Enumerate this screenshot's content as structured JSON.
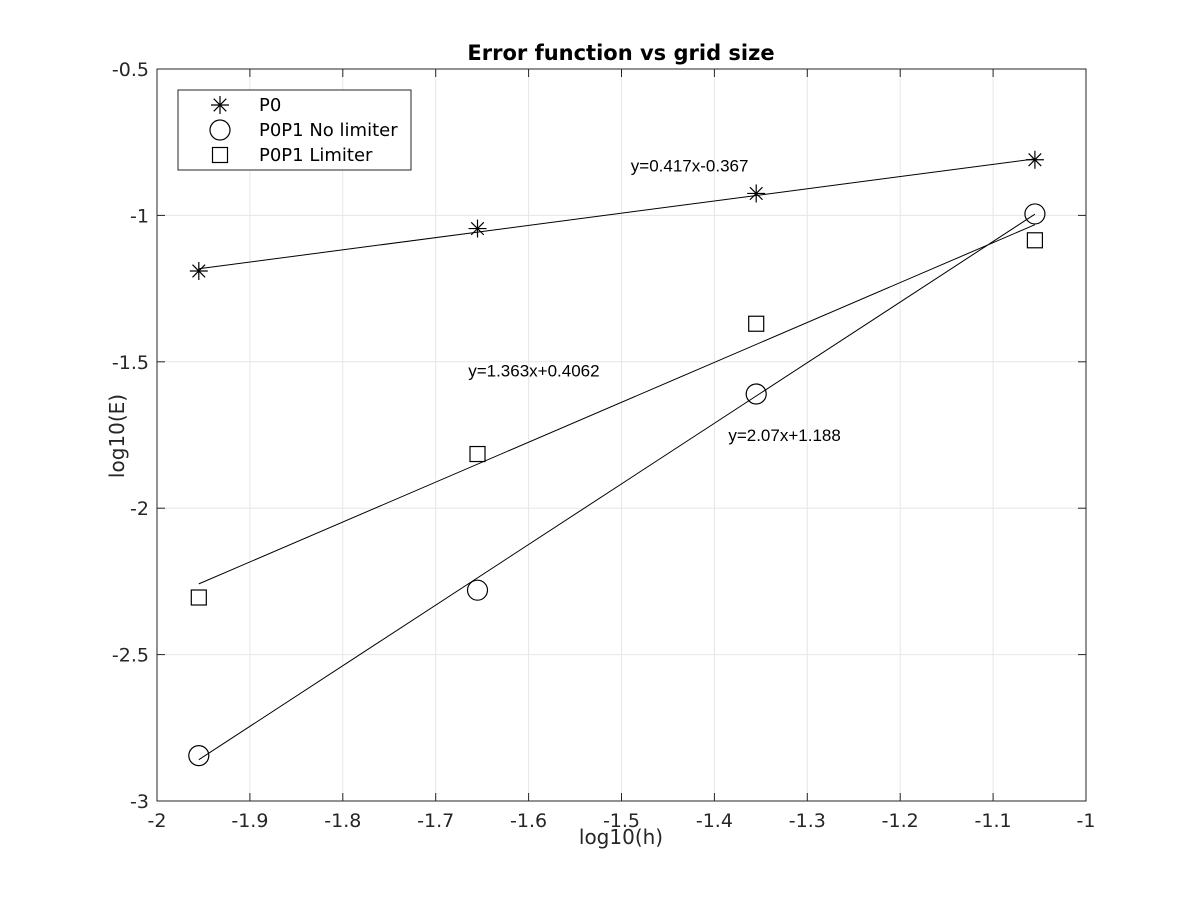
{
  "chart_data": {
    "type": "scatter",
    "title": "Error function vs grid size",
    "xlabel": "log10(h)",
    "ylabel": "log10(E)",
    "xlim": [
      -2,
      -1
    ],
    "ylim": [
      -3,
      -0.5
    ],
    "xticks": [
      -2,
      -1.9,
      -1.8,
      -1.7,
      -1.6,
      -1.5,
      -1.4,
      -1.3,
      -1.2,
      -1.1,
      -1
    ],
    "yticks": [
      -3,
      -2.5,
      -2,
      -1.5,
      -1,
      -0.5
    ],
    "xtick_labels": [
      "-2",
      "-1.9",
      "-1.8",
      "-1.7",
      "-1.6",
      "-1.5",
      "-1.4",
      "-1.3",
      "-1.2",
      "-1.1",
      "-1"
    ],
    "ytick_labels": [
      "-3",
      "-2.5",
      "-2",
      "-1.5",
      "-1",
      "-0.5"
    ],
    "grid": true,
    "legend_position": "top-left",
    "series": [
      {
        "name": "P0",
        "marker": "asterisk",
        "x": [
          -1.955,
          -1.655,
          -1.355,
          -1.055
        ],
        "y": [
          -1.19,
          -1.045,
          -0.925,
          -0.81
        ],
        "fit": {
          "slope": 0.417,
          "intercept": -0.367,
          "label": "y=0.417x-0.367"
        }
      },
      {
        "name": "P0P1 No limiter",
        "marker": "circle",
        "x": [
          -1.955,
          -1.655,
          -1.355,
          -1.055
        ],
        "y": [
          -2.845,
          -2.28,
          -1.61,
          -0.995
        ],
        "fit": {
          "slope": 2.07,
          "intercept": 1.188,
          "label": "y=2.07x+1.188"
        }
      },
      {
        "name": "P0P1 Limiter",
        "marker": "square",
        "x": [
          -1.955,
          -1.655,
          -1.355,
          -1.055
        ],
        "y": [
          -2.305,
          -1.815,
          -1.37,
          -1.085
        ],
        "fit": {
          "slope": 1.363,
          "intercept": 0.4062,
          "label": "y=1.363x+0.4062"
        }
      }
    ],
    "annotations": [
      {
        "text": "y=0.417x-0.367",
        "x": -1.49,
        "y": -0.85
      },
      {
        "text": "y=1.363x+0.4062",
        "x": -1.665,
        "y": -1.55
      },
      {
        "text": "y=2.07x+1.188",
        "x": -1.385,
        "y": -1.77
      }
    ],
    "colors": {
      "axes": "#262626",
      "grid": "#e6e6e6",
      "lines": "#000000",
      "background": "#ffffff"
    }
  }
}
